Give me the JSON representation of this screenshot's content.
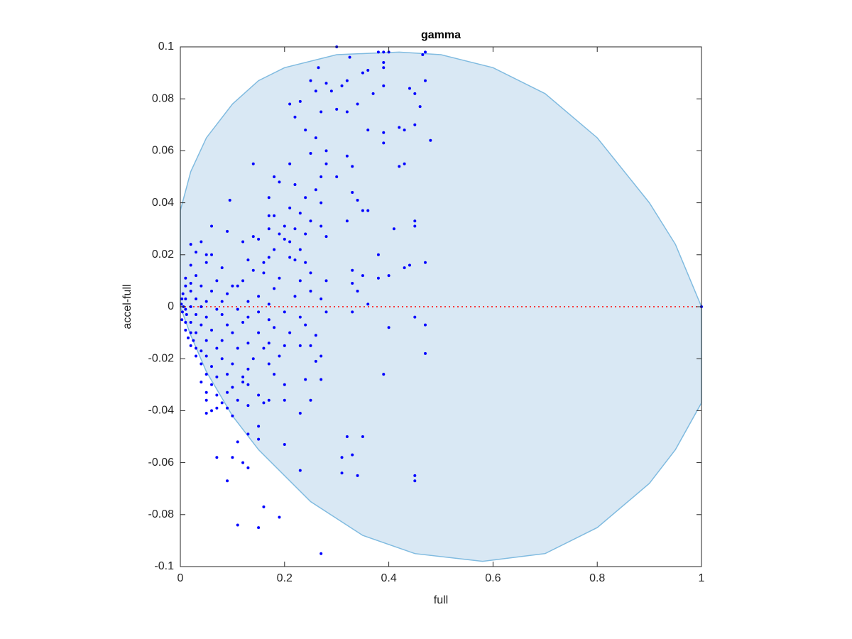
{
  "chart_data": {
    "type": "scatter",
    "title": "gamma",
    "xlabel": "full",
    "ylabel": "accel-full",
    "xlim": [
      0,
      1
    ],
    "ylim": [
      -0.1,
      0.1
    ],
    "xticks": [
      0,
      0.2,
      0.4,
      0.6,
      0.8,
      1
    ],
    "yticks": [
      -0.1,
      -0.08,
      -0.06,
      -0.04,
      -0.02,
      0,
      0.02,
      0.04,
      0.06,
      0.08,
      0.1
    ],
    "grid": false,
    "color": "#0000ff",
    "region": {
      "fill": "#d9e8f4",
      "edge": "#80bbe0",
      "x": [
        0,
        0.02,
        0.05,
        0.1,
        0.15,
        0.2,
        0.3,
        0.42,
        0.5,
        0.6,
        0.7,
        0.8,
        0.9,
        0.95,
        1,
        1,
        0.95,
        0.9,
        0.8,
        0.7,
        0.58,
        0.45,
        0.35,
        0.25,
        0.15,
        0.1,
        0.05,
        0.02,
        0,
        0
      ],
      "y": [
        0.037,
        0.052,
        0.065,
        0.078,
        0.087,
        0.092,
        0.097,
        0.098,
        0.097,
        0.092,
        0.082,
        0.065,
        0.04,
        0.024,
        0,
        -0.037,
        -0.055,
        -0.068,
        -0.085,
        -0.095,
        -0.098,
        -0.095,
        -0.088,
        -0.075,
        -0.055,
        -0.042,
        -0.025,
        -0.011,
        0,
        0.037
      ]
    },
    "reference_line": {
      "y": 0,
      "color": "#ff0000"
    },
    "x": [
      0.3,
      0.47,
      0.465,
      0.38,
      0.39,
      0.4,
      0.39,
      0.39,
      0.325,
      0.265,
      0.36,
      0.35,
      0.25,
      0.32,
      0.47,
      0.31,
      0.28,
      0.39,
      0.44,
      0.26,
      0.29,
      0.37,
      0.45,
      0.23,
      0.21,
      0.34,
      0.46,
      0.3,
      0.32,
      0.27,
      0.22,
      0.24,
      0.36,
      0.39,
      0.43,
      0.45,
      0.26,
      0.42,
      0.48,
      0.39,
      0.25,
      0.28,
      0.32,
      0.28,
      0.21,
      0.14,
      0.42,
      0.43,
      0.33,
      0.3,
      0.27,
      0.18,
      0.19,
      0.22,
      0.26,
      0.33,
      0.24,
      0.17,
      0.095,
      0.34,
      0.27,
      0.21,
      0.35,
      0.36,
      0.23,
      0.18,
      0.17,
      0.25,
      0.32,
      0.45,
      0.45,
      0.41,
      0.06,
      0.09,
      0.17,
      0.2,
      0.22,
      0.27,
      0.24,
      0.19,
      0.14,
      0.15,
      0.2,
      0.21,
      0.28,
      0.02,
      0.04,
      0.12,
      0.18,
      0.23,
      0.03,
      0.05,
      0.06,
      0.13,
      0.16,
      0.17,
      0.21,
      0.22,
      0.24,
      0.38,
      0.47,
      0.43,
      0.44,
      0.02,
      0.05,
      0.08,
      0.14,
      0.16,
      0.25,
      0.33,
      0.35,
      0.38,
      0.4,
      0.01,
      0.03,
      0.07,
      0.12,
      0.19,
      0.23,
      0.28,
      0.33,
      0.01,
      0.02,
      0.04,
      0.1,
      0.11,
      0.18,
      0.25,
      0.34,
      0.005,
      0.02,
      0.06,
      0.09,
      0.15,
      0.22,
      0.27,
      0.003,
      0.01,
      0.03,
      0.05,
      0.08,
      0.13,
      0.17,
      0.36,
      0.002,
      0.006,
      0.01,
      0.02,
      0.04,
      0.07,
      0.11,
      0.15,
      0.2,
      0.28,
      0.33,
      0.45,
      0.004,
      0.012,
      0.03,
      0.05,
      0.08,
      0.13,
      0.17,
      0.23,
      0.003,
      0.01,
      0.02,
      0.04,
      0.09,
      0.12,
      0.18,
      0.24,
      0.4,
      0.47,
      0.01,
      0.02,
      0.03,
      0.06,
      0.1,
      0.15,
      0.21,
      0.26,
      0.015,
      0.025,
      0.05,
      0.08,
      0.13,
      0.17,
      0.2,
      0.02,
      0.03,
      0.04,
      0.07,
      0.11,
      0.16,
      0.23,
      0.25,
      0.03,
      0.05,
      0.08,
      0.14,
      0.19,
      0.27,
      0.47,
      0.04,
      0.06,
      0.1,
      0.13,
      0.17,
      0.26,
      0.39,
      0.05,
      0.07,
      0.09,
      0.12,
      0.18,
      0.24,
      0.27,
      0.04,
      0.06,
      0.1,
      0.13,
      0.12,
      0.2,
      0.05,
      0.07,
      0.09,
      0.15,
      0.05,
      0.08,
      0.11,
      0.17,
      0.2,
      0.25,
      0.07,
      0.09,
      0.13,
      0.16,
      0.05,
      0.06,
      0.1,
      0.23,
      0.15,
      0.13,
      0.15,
      0.32,
      0.35,
      0.11,
      0.2,
      0.33,
      0.1,
      0.07,
      0.12,
      0.31,
      0.13,
      0.23,
      0.31,
      0.34,
      0.45,
      0.45,
      0.09,
      0.16,
      0.19,
      0.11,
      0.15,
      0.27,
      1
    ],
    "values": [
      0.1,
      0.098,
      0.097,
      0.098,
      0.098,
      0.098,
      0.094,
      0.092,
      0.096,
      0.092,
      0.091,
      0.09,
      0.087,
      0.087,
      0.087,
      0.085,
      0.086,
      0.085,
      0.084,
      0.083,
      0.083,
      0.082,
      0.082,
      0.079,
      0.078,
      0.078,
      0.077,
      0.076,
      0.075,
      0.075,
      0.073,
      0.068,
      0.068,
      0.067,
      0.068,
      0.07,
      0.065,
      0.069,
      0.064,
      0.063,
      0.059,
      0.06,
      0.058,
      0.055,
      0.055,
      0.055,
      0.054,
      0.055,
      0.054,
      0.05,
      0.05,
      0.05,
      0.048,
      0.047,
      0.045,
      0.044,
      0.042,
      0.042,
      0.041,
      0.041,
      0.04,
      0.038,
      0.037,
      0.037,
      0.036,
      0.035,
      0.035,
      0.033,
      0.033,
      0.033,
      0.031,
      0.03,
      0.031,
      0.029,
      0.03,
      0.031,
      0.03,
      0.031,
      0.028,
      0.028,
      0.027,
      0.026,
      0.026,
      0.025,
      0.027,
      0.024,
      0.025,
      0.025,
      0.022,
      0.022,
      0.021,
      0.02,
      0.02,
      0.018,
      0.017,
      0.019,
      0.019,
      0.018,
      0.017,
      0.02,
      0.017,
      0.015,
      0.016,
      0.016,
      0.017,
      0.015,
      0.014,
      0.013,
      0.013,
      0.014,
      0.012,
      0.011,
      0.012,
      0.011,
      0.012,
      0.01,
      0.01,
      0.011,
      0.01,
      0.01,
      0.009,
      0.008,
      0.009,
      0.008,
      0.008,
      0.008,
      0.007,
      0.006,
      0.006,
      0.005,
      0.006,
      0.006,
      0.005,
      0.004,
      0.004,
      0.003,
      0.003,
      0.003,
      0.003,
      0.002,
      0.002,
      0.002,
      0.001,
      0.001,
      0.001,
      0,
      -0.001,
      0,
      0,
      -0.001,
      -0.001,
      -0.002,
      -0.002,
      -0.002,
      -0.002,
      -0.004,
      -0.002,
      -0.003,
      -0.003,
      -0.004,
      -0.003,
      -0.004,
      -0.005,
      -0.004,
      -0.005,
      -0.006,
      -0.006,
      -0.007,
      -0.007,
      -0.006,
      -0.008,
      -0.007,
      -0.008,
      -0.007,
      -0.009,
      -0.01,
      -0.01,
      -0.009,
      -0.01,
      -0.01,
      -0.01,
      -0.011,
      -0.012,
      -0.013,
      -0.013,
      -0.013,
      -0.014,
      -0.014,
      -0.015,
      -0.015,
      -0.016,
      -0.017,
      -0.016,
      -0.016,
      -0.016,
      -0.015,
      -0.015,
      -0.019,
      -0.019,
      -0.02,
      -0.02,
      -0.019,
      -0.019,
      -0.018,
      -0.022,
      -0.023,
      -0.022,
      -0.024,
      -0.022,
      -0.021,
      -0.026,
      -0.026,
      -0.027,
      -0.026,
      -0.027,
      -0.026,
      -0.028,
      -0.028,
      -0.029,
      -0.03,
      -0.031,
      -0.03,
      -0.029,
      -0.03,
      -0.033,
      -0.034,
      -0.033,
      -0.034,
      -0.036,
      -0.037,
      -0.036,
      -0.036,
      -0.036,
      -0.036,
      -0.039,
      -0.039,
      -0.038,
      -0.037,
      -0.041,
      -0.04,
      -0.042,
      -0.041,
      -0.046,
      -0.049,
      -0.051,
      -0.05,
      -0.05,
      -0.052,
      -0.053,
      -0.057,
      -0.058,
      -0.058,
      -0.06,
      -0.058,
      -0.062,
      -0.063,
      -0.064,
      -0.065,
      -0.065,
      -0.067,
      -0.067,
      -0.077,
      -0.081,
      -0.084,
      -0.085,
      -0.095,
      0
    ]
  }
}
